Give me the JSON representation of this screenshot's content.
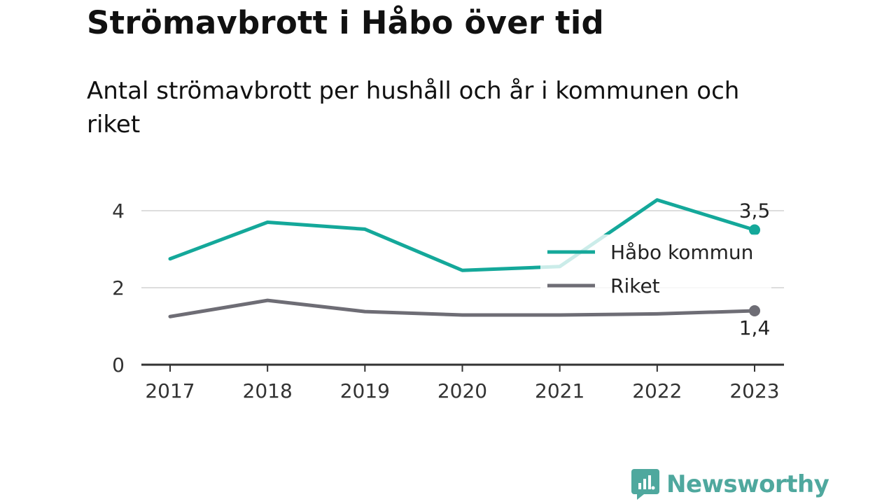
{
  "title": "Strömavbrott i Håbo över tid",
  "subtitle": "Antal strömavbrott per hushåll och år i kommunen och riket",
  "brand": "Newsworthy",
  "colors": {
    "habo": "#14a89a",
    "riket": "#6e6d75",
    "grid": "#dddddd",
    "axis": "#333333",
    "brand": "#4fa89e"
  },
  "chart_data": {
    "type": "line",
    "x": [
      "2017",
      "2018",
      "2019",
      "2020",
      "2021",
      "2022",
      "2023"
    ],
    "ylim": [
      0,
      4.3
    ],
    "yticks": [
      "0",
      "2",
      "4"
    ],
    "series": [
      {
        "name": "Håbo kommun",
        "values": [
          2.75,
          3.7,
          3.52,
          2.45,
          2.55,
          4.28,
          3.5
        ],
        "end_label": "3,5"
      },
      {
        "name": "Riket",
        "values": [
          1.25,
          1.67,
          1.38,
          1.29,
          1.29,
          1.32,
          1.4
        ],
        "end_label": "1,4"
      }
    ],
    "legend": "inside right"
  }
}
